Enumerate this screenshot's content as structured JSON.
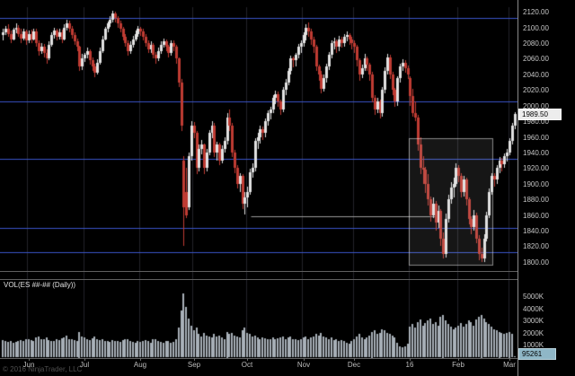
{
  "window": {
    "watermark": "© 2016 NinjaTrader, LLC"
  },
  "price_axis": {
    "last_price_label": "1989.50",
    "ticks": [
      [
        "2120.00",
        2120
      ],
      [
        "2100.00",
        2100
      ],
      [
        "2080.00",
        2080
      ],
      [
        "2060.00",
        2060
      ],
      [
        "2040.00",
        2040
      ],
      [
        "2020.00",
        2020
      ],
      [
        "2000.00",
        2000
      ],
      [
        "1980.00",
        1980
      ],
      [
        "1960.00",
        1960
      ],
      [
        "1940.00",
        1940
      ],
      [
        "1920.00",
        1920
      ],
      [
        "1900.00",
        1900
      ],
      [
        "1880.00",
        1880
      ],
      [
        "1860.00",
        1860
      ],
      [
        "1840.00",
        1840
      ],
      [
        "1820.00",
        1820
      ],
      [
        "1800.00",
        1800
      ]
    ]
  },
  "volume_panel": {
    "title": "VOL(ES ##-## (Daily))",
    "last_volume_label": "95261",
    "ticks": [
      [
        "5000K",
        5000
      ],
      [
        "4000K",
        4000
      ],
      [
        "3000K",
        3000
      ],
      [
        "2000K",
        2000
      ],
      [
        "1000K",
        1000
      ]
    ]
  },
  "colors": {
    "background": "#000000",
    "up": "#e2e2e2",
    "down": "#bf3b33",
    "level_line": "#3a55c8",
    "month_grid": "#23232a",
    "volume_bar": "#a8b0b8",
    "highlight_fill": "rgba(220,220,220,0.10)",
    "highlight_border": "rgba(235,235,235,0.55)",
    "drawn_line": "#9a9a9a"
  },
  "chart_data": {
    "type": "candlestick+volume",
    "title": "VOL(ES ##-## (Daily))",
    "ylim": [
      1793,
      2126
    ],
    "volume_ylim_k": [
      0,
      5600
    ],
    "last_price": 1989.5,
    "level_lines": [
      2112,
      2005,
      1932,
      1843,
      1813
    ],
    "drawn_line": {
      "start_bar": 98,
      "end_bar": 171,
      "price": 1858
    },
    "highlight_box": {
      "start_bar": 160,
      "end_bar": 193,
      "top": 1958,
      "bottom": 1796
    },
    "month_ticks": [
      {
        "label": "Jun",
        "bar": 10
      },
      {
        "label": "Jul",
        "bar": 32
      },
      {
        "label": "Aug",
        "bar": 54
      },
      {
        "label": "Sep",
        "bar": 75
      },
      {
        "label": "Oct",
        "bar": 96
      },
      {
        "label": "Nov",
        "bar": 118
      },
      {
        "label": "Dec",
        "bar": 138
      },
      {
        "label": "16",
        "bar": 160
      },
      {
        "label": "Feb",
        "bar": 179
      },
      {
        "label": "Mar",
        "bar": 199
      }
    ],
    "bars": [
      [
        2090,
        2098,
        2084,
        2094
      ],
      [
        2094,
        2102,
        2090,
        2098
      ],
      [
        2098,
        2104,
        2088,
        2092
      ],
      [
        2092,
        2096,
        2080,
        2085
      ],
      [
        2085,
        2100,
        2083,
        2097
      ],
      [
        2097,
        2105,
        2093,
        2100
      ],
      [
        2100,
        2103,
        2088,
        2092
      ],
      [
        2092,
        2098,
        2080,
        2086
      ],
      [
        2086,
        2099,
        2084,
        2095
      ],
      [
        2095,
        2097,
        2078,
        2083
      ],
      [
        2083,
        2096,
        2080,
        2092
      ],
      [
        2092,
        2097,
        2080,
        2085
      ],
      [
        2085,
        2099,
        2083,
        2095
      ],
      [
        2095,
        2098,
        2076,
        2080
      ],
      [
        2080,
        2084,
        2064,
        2070
      ],
      [
        2070,
        2080,
        2066,
        2075
      ],
      [
        2075,
        2079,
        2062,
        2068
      ],
      [
        2068,
        2072,
        2054,
        2060
      ],
      [
        2060,
        2082,
        2058,
        2078
      ],
      [
        2078,
        2094,
        2076,
        2090
      ],
      [
        2090,
        2100,
        2086,
        2096
      ],
      [
        2096,
        2099,
        2084,
        2088
      ],
      [
        2088,
        2098,
        2085,
        2094
      ],
      [
        2094,
        2097,
        2080,
        2085
      ],
      [
        2085,
        2104,
        2083,
        2100
      ],
      [
        2100,
        2110,
        2096,
        2105
      ],
      [
        2105,
        2109,
        2094,
        2098
      ],
      [
        2098,
        2102,
        2086,
        2090
      ],
      [
        2090,
        2094,
        2078,
        2082
      ],
      [
        2082,
        2086,
        2070,
        2075
      ],
      [
        2075,
        2077,
        2044,
        2050
      ],
      [
        2050,
        2066,
        2046,
        2060
      ],
      [
        2060,
        2068,
        2056,
        2065
      ],
      [
        2065,
        2074,
        2060,
        2070
      ],
      [
        2070,
        2072,
        2052,
        2058
      ],
      [
        2058,
        2062,
        2044,
        2050
      ],
      [
        2050,
        2054,
        2036,
        2042
      ],
      [
        2042,
        2059,
        2040,
        2055
      ],
      [
        2055,
        2074,
        2052,
        2070
      ],
      [
        2070,
        2089,
        2068,
        2085
      ],
      [
        2085,
        2101,
        2083,
        2098
      ],
      [
        2098,
        2108,
        2094,
        2105
      ],
      [
        2105,
        2114,
        2101,
        2110
      ],
      [
        2110,
        2121,
        2106,
        2118
      ],
      [
        2118,
        2120,
        2106,
        2112
      ],
      [
        2112,
        2115,
        2100,
        2105
      ],
      [
        2105,
        2109,
        2094,
        2098
      ],
      [
        2098,
        2101,
        2084,
        2088
      ],
      [
        2088,
        2092,
        2076,
        2080
      ],
      [
        2080,
        2083,
        2064,
        2070
      ],
      [
        2070,
        2082,
        2066,
        2078
      ],
      [
        2078,
        2089,
        2074,
        2085
      ],
      [
        2085,
        2096,
        2082,
        2092
      ],
      [
        2092,
        2102,
        2088,
        2098
      ],
      [
        2098,
        2101,
        2089,
        2095
      ],
      [
        2095,
        2098,
        2083,
        2088
      ],
      [
        2088,
        2091,
        2075,
        2080
      ],
      [
        2080,
        2084,
        2067,
        2072
      ],
      [
        2072,
        2082,
        2068,
        2078
      ],
      [
        2078,
        2080,
        2060,
        2065
      ],
      [
        2065,
        2069,
        2054,
        2060
      ],
      [
        2060,
        2074,
        2057,
        2070
      ],
      [
        2070,
        2082,
        2066,
        2078
      ],
      [
        2078,
        2086,
        2074,
        2082
      ],
      [
        2082,
        2085,
        2070,
        2075
      ],
      [
        2075,
        2078,
        2062,
        2068
      ],
      [
        2068,
        2084,
        2064,
        2080
      ],
      [
        2080,
        2083,
        2070,
        2075
      ],
      [
        2075,
        2078,
        2054,
        2060
      ],
      [
        2060,
        2062,
        2024,
        2030
      ],
      [
        2030,
        2034,
        1968,
        1975
      ],
      [
        1930,
        1935,
        1820,
        1870
      ],
      [
        1890,
        1920,
        1856,
        1860
      ],
      [
        1870,
        1940,
        1866,
        1935
      ],
      [
        1935,
        1980,
        1930,
        1975
      ],
      [
        1975,
        1979,
        1958,
        1965
      ],
      [
        1965,
        1968,
        1912,
        1920
      ],
      [
        1920,
        1950,
        1916,
        1945
      ],
      [
        1945,
        1956,
        1938,
        1950
      ],
      [
        1950,
        1952,
        1912,
        1920
      ],
      [
        1920,
        1944,
        1916,
        1940
      ],
      [
        1940,
        1969,
        1936,
        1965
      ],
      [
        1965,
        1980,
        1958,
        1975
      ],
      [
        1975,
        1978,
        1934,
        1940
      ],
      [
        1940,
        1954,
        1930,
        1950
      ],
      [
        1950,
        1953,
        1924,
        1930
      ],
      [
        1930,
        1949,
        1926,
        1945
      ],
      [
        1945,
        1959,
        1940,
        1955
      ],
      [
        1955,
        1990,
        1950,
        1985
      ],
      [
        1985,
        1995,
        1968,
        1975
      ],
      [
        1975,
        1978,
        1934,
        1940
      ],
      [
        1940,
        1943,
        1914,
        1920
      ],
      [
        1920,
        1924,
        1894,
        1900
      ],
      [
        1900,
        1914,
        1890,
        1910
      ],
      [
        1910,
        1912,
        1868,
        1875
      ],
      [
        1875,
        1890,
        1861,
        1882
      ],
      [
        1882,
        1896,
        1870,
        1890
      ],
      [
        1890,
        1919,
        1886,
        1915
      ],
      [
        1915,
        1926,
        1908,
        1920
      ],
      [
        1920,
        1958,
        1916,
        1955
      ],
      [
        1955,
        1965,
        1945,
        1960
      ],
      [
        1960,
        1974,
        1952,
        1970
      ],
      [
        1970,
        1973,
        1956,
        1965
      ],
      [
        1965,
        1984,
        1960,
        1980
      ],
      [
        1980,
        1994,
        1974,
        1990
      ],
      [
        1990,
        1999,
        1982,
        1995
      ],
      [
        1995,
        2013,
        1990,
        2010
      ],
      [
        2010,
        2019,
        2002,
        2015
      ],
      [
        2015,
        2018,
        1998,
        2005
      ],
      [
        2005,
        2008,
        1988,
        1995
      ],
      [
        1995,
        2024,
        1992,
        2020
      ],
      [
        2020,
        2034,
        2014,
        2030
      ],
      [
        2030,
        2048,
        2026,
        2045
      ],
      [
        2045,
        2064,
        2040,
        2060
      ],
      [
        2060,
        2063,
        2049,
        2058
      ],
      [
        2058,
        2068,
        2050,
        2065
      ],
      [
        2065,
        2079,
        2060,
        2075
      ],
      [
        2075,
        2084,
        2068,
        2080
      ],
      [
        2080,
        2094,
        2076,
        2090
      ],
      [
        2090,
        2104,
        2084,
        2100
      ],
      [
        2100,
        2106,
        2088,
        2095
      ],
      [
        2095,
        2098,
        2078,
        2085
      ],
      [
        2085,
        2088,
        2068,
        2075
      ],
      [
        2075,
        2078,
        2044,
        2050
      ],
      [
        2050,
        2053,
        2032,
        2040
      ],
      [
        2040,
        2044,
        2016,
        2022
      ],
      [
        2022,
        2040,
        2018,
        2035
      ],
      [
        2035,
        2054,
        2030,
        2050
      ],
      [
        2050,
        2069,
        2046,
        2065
      ],
      [
        2065,
        2084,
        2060,
        2080
      ],
      [
        2080,
        2087,
        2072,
        2082
      ],
      [
        2082,
        2085,
        2068,
        2075
      ],
      [
        2075,
        2089,
        2070,
        2085
      ],
      [
        2085,
        2088,
        2074,
        2080
      ],
      [
        2080,
        2092,
        2076,
        2088
      ],
      [
        2088,
        2095,
        2082,
        2090
      ],
      [
        2090,
        2093,
        2078,
        2085
      ],
      [
        2085,
        2088,
        2072,
        2080
      ],
      [
        2080,
        2083,
        2068,
        2075
      ],
      [
        2075,
        2078,
        2050,
        2058
      ],
      [
        2058,
        2061,
        2032,
        2040
      ],
      [
        2040,
        2053,
        2035,
        2048
      ],
      [
        2048,
        2066,
        2044,
        2060
      ],
      [
        2060,
        2063,
        2045,
        2052
      ],
      [
        2052,
        2055,
        2032,
        2040
      ],
      [
        2040,
        2043,
        2004,
        2010
      ],
      [
        2010,
        2014,
        1988,
        1995
      ],
      [
        1995,
        2010,
        1990,
        2005
      ],
      [
        2005,
        2008,
        1984,
        1990
      ],
      [
        1990,
        2024,
        1986,
        2020
      ],
      [
        2020,
        2049,
        2016,
        2045
      ],
      [
        2045,
        2066,
        2040,
        2062
      ],
      [
        2062,
        2065,
        2034,
        2040
      ],
      [
        2040,
        2043,
        2014,
        2020
      ],
      [
        2020,
        2023,
        1998,
        2005
      ],
      [
        2005,
        2038,
        2000,
        2035
      ],
      [
        2035,
        2054,
        2030,
        2050
      ],
      [
        2050,
        2059,
        2044,
        2055
      ],
      [
        2055,
        2058,
        2042,
        2048
      ],
      [
        2048,
        2051,
        2034,
        2040
      ],
      [
        2035,
        2038,
        2000,
        2012
      ],
      [
        2012,
        2021,
        1986,
        1990
      ],
      [
        1990,
        2005,
        1980,
        1985
      ],
      [
        1985,
        1988,
        1942,
        1950
      ],
      [
        1950,
        1960,
        1912,
        1920
      ],
      [
        1920,
        1935,
        1900,
        1918
      ],
      [
        1918,
        1922,
        1888,
        1900
      ],
      [
        1900,
        1912,
        1872,
        1880
      ],
      [
        1880,
        1884,
        1852,
        1860
      ],
      [
        1860,
        1882,
        1856,
        1875
      ],
      [
        1875,
        1878,
        1840,
        1850
      ],
      [
        1850,
        1872,
        1844,
        1865
      ],
      [
        1865,
        1868,
        1820,
        1830
      ],
      [
        1830,
        1838,
        1804,
        1810
      ],
      [
        1810,
        1862,
        1806,
        1855
      ],
      [
        1855,
        1886,
        1850,
        1880
      ],
      [
        1880,
        1902,
        1874,
        1895
      ],
      [
        1895,
        1908,
        1882,
        1900
      ],
      [
        1900,
        1926,
        1896,
        1920
      ],
      [
        1920,
        1924,
        1902,
        1910
      ],
      [
        1910,
        1913,
        1882,
        1890
      ],
      [
        1890,
        1910,
        1884,
        1905
      ],
      [
        1905,
        1908,
        1872,
        1880
      ],
      [
        1880,
        1883,
        1848,
        1855
      ],
      [
        1855,
        1859,
        1836,
        1845
      ],
      [
        1845,
        1866,
        1840,
        1860
      ],
      [
        1860,
        1863,
        1824,
        1830
      ],
      [
        1830,
        1834,
        1802,
        1810
      ],
      [
        1810,
        1818,
        1800,
        1805
      ],
      [
        1805,
        1836,
        1800,
        1830
      ],
      [
        1830,
        1864,
        1826,
        1860
      ],
      [
        1860,
        1894,
        1856,
        1890
      ],
      [
        1890,
        1914,
        1886,
        1910
      ],
      [
        1910,
        1913,
        1896,
        1905
      ],
      [
        1905,
        1924,
        1900,
        1920
      ],
      [
        1920,
        1934,
        1914,
        1930
      ],
      [
        1930,
        1933,
        1916,
        1925
      ],
      [
        1925,
        1939,
        1920,
        1935
      ],
      [
        1935,
        1944,
        1928,
        1940
      ],
      [
        1940,
        1958,
        1936,
        1955
      ],
      [
        1955,
        1978,
        1950,
        1975
      ],
      [
        1975,
        1992,
        1970,
        1989.5
      ]
    ],
    "volumes_k": [
      1400,
      1300,
      1250,
      1350,
      1200,
      1250,
      1300,
      1400,
      1350,
      1500,
      1500,
      1400,
      1350,
      1600,
      1700,
      1450,
      1500,
      1650,
      1400,
      1300,
      1350,
      1500,
      1400,
      1550,
      1600,
      1800,
      1500,
      1450,
      1400,
      1350,
      2100,
      1700,
      1600,
      1500,
      1400,
      1550,
      1700,
      1450,
      1400,
      1500,
      1350,
      1300,
      1250,
      1400,
      1300,
      1350,
      1250,
      1400,
      1450,
      1500,
      1300,
      1250,
      1200,
      1300,
      1250,
      1300,
      1400,
      1350,
      1200,
      1450,
      1500,
      1300,
      1250,
      1200,
      1300,
      1350,
      1200,
      1250,
      1500,
      2400,
      3800,
      5200,
      4100,
      3200,
      2600,
      2200,
      2400,
      1900,
      1700,
      2000,
      1800,
      1700,
      1600,
      1900,
      1700,
      1800,
      1600,
      1500,
      2100,
      1900,
      2000,
      1800,
      1700,
      1600,
      2200,
      2400,
      2000,
      1900,
      1700,
      1800,
      1600,
      1500,
      1600,
      1550,
      1500,
      1450,
      1600,
      1500,
      1550,
      1600,
      1700,
      1500,
      1600,
      1700,
      1500,
      1450,
      1400,
      1500,
      1600,
      1700,
      1500,
      1600,
      1700,
      1900,
      1800,
      2000,
      1700,
      1600,
      1500,
      1600,
      1400,
      1500,
      1300,
      1400,
      1350,
      1200,
      1100,
      1300,
      1500,
      1700,
      1900,
      1600,
      1500,
      1600,
      1800,
      2100,
      2200,
      1900,
      2000,
      2300,
      2200,
      2000,
      1900,
      1800,
      1600,
      1200,
      900,
      800,
      850,
      1100,
      2500,
      2700,
      2400,
      2900,
      3100,
      2600,
      2800,
      3000,
      3200,
      2700,
      2900,
      2600,
      3300,
      3500,
      3000,
      2700,
      2500,
      2300,
      2400,
      2600,
      2800,
      2500,
      2700,
      3000,
      2900,
      2600,
      3100,
      3300,
      3500,
      3200,
      2900,
      2700,
      2500,
      2300,
      2200,
      2100,
      2000,
      1900,
      2000,
      2100,
      1900,
      95
    ]
  }
}
